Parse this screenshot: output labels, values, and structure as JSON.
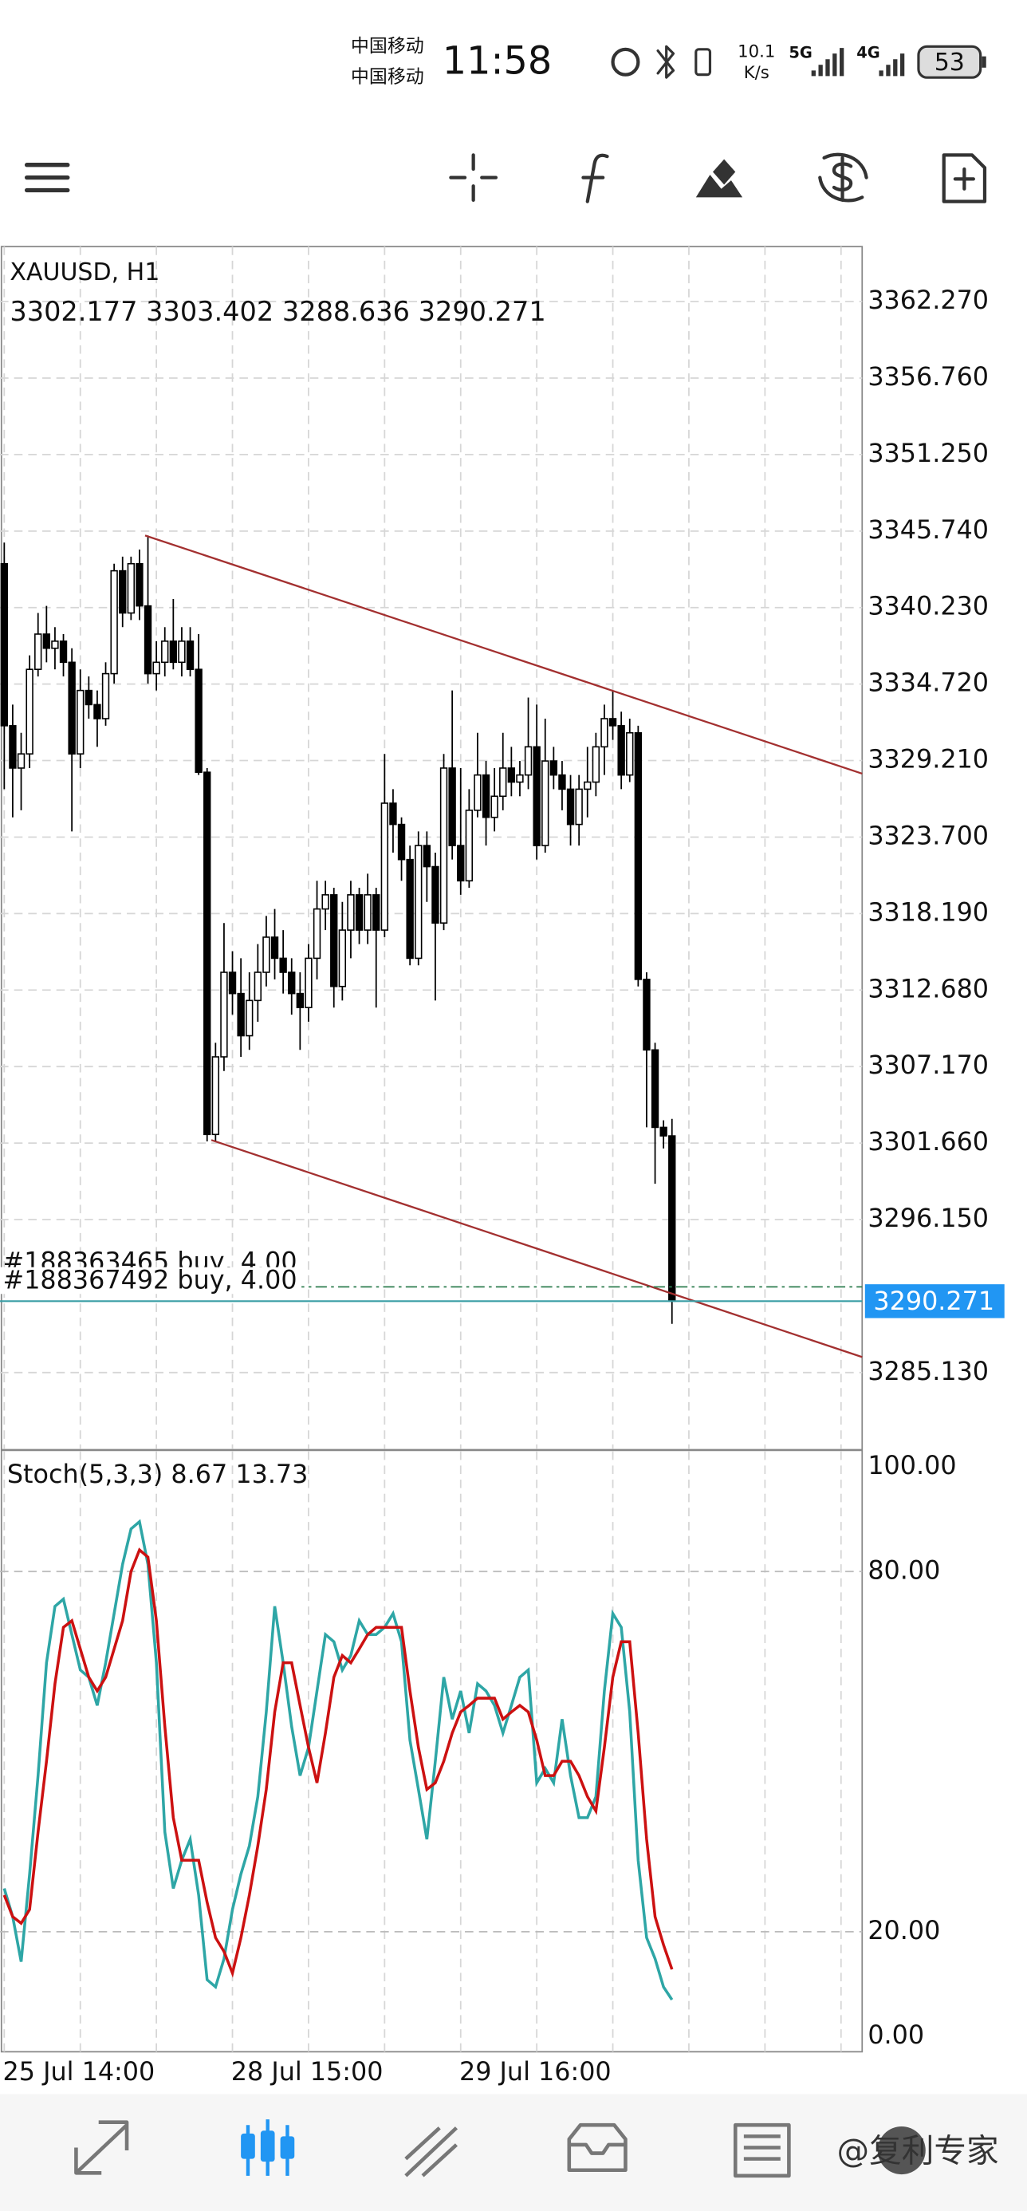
{
  "status_bar": {
    "carriers": [
      "中国移动",
      "中国移动"
    ],
    "time": "11:58",
    "speed": "10.1",
    "speed_unit": "K/s",
    "networks": [
      "5G",
      "4G"
    ],
    "battery": "53"
  },
  "chart_data": [
    {
      "type": "candlestick",
      "title": "XAUUSD, H1",
      "open": [
        3343.39,
        3331.72,
        3328.67,
        3329.69,
        3335.78,
        3338.32,
        3337.3,
        3337.81,
        3336.29,
        3329.69,
        3334.26,
        3333.24,
        3332.23,
        3335.47,
        3342.88,
        3339.84,
        3343.39,
        3340.35,
        3335.47,
        3336.29,
        3337.81,
        3336.29,
        3337.81,
        3335.78,
        3328.37,
        3302.28,
        3307.87,
        3313.96,
        3312.43,
        3309.39,
        3311.93,
        3313.96,
        3316.49,
        3314.97,
        3313.96,
        3312.43,
        3311.42,
        3314.97,
        3318.52,
        3319.54,
        3312.94,
        3317.0,
        3319.54,
        3317.0,
        3319.54,
        3317.0,
        3326.14,
        3324.61,
        3322.08,
        3314.97,
        3323.09,
        3321.57,
        3317.51,
        3328.67,
        3323.09,
        3320.55,
        3325.63,
        3328.17,
        3325.12,
        3326.64,
        3328.67,
        3327.66,
        3328.17,
        3330.2,
        3323.09,
        3329.18,
        3328.17,
        3327.15,
        3324.61,
        3327.15,
        3327.66,
        3330.2,
        3332.23,
        3331.72,
        3328.17,
        3331.21,
        3313.45,
        3308.37,
        3302.79,
        3302.177
      ],
      "high": [
        3344.91,
        3333.24,
        3331.21,
        3336.79,
        3339.84,
        3340.35,
        3338.82,
        3338.32,
        3337.3,
        3335.78,
        3335.27,
        3334.26,
        3336.29,
        3343.39,
        3343.9,
        3343.9,
        3344.41,
        3345.42,
        3337.81,
        3338.82,
        3340.85,
        3338.82,
        3338.82,
        3338.32,
        3328.67,
        3308.88,
        3317.51,
        3315.48,
        3314.97,
        3313.96,
        3315.99,
        3318.02,
        3318.52,
        3317.0,
        3314.97,
        3313.96,
        3315.99,
        3320.55,
        3320.55,
        3320.05,
        3319.03,
        3320.55,
        3320.05,
        3321.06,
        3320.05,
        3329.69,
        3327.15,
        3325.12,
        3323.09,
        3324.11,
        3324.11,
        3322.58,
        3329.69,
        3334.26,
        3328.67,
        3327.15,
        3331.21,
        3329.18,
        3328.67,
        3331.21,
        3330.2,
        3329.18,
        3333.75,
        3333.24,
        3332.23,
        3330.2,
        3329.18,
        3328.17,
        3328.17,
        3330.2,
        3331.21,
        3333.24,
        3334.26,
        3332.73,
        3332.23,
        3331.72,
        3313.96,
        3308.88,
        3303.3,
        3303.402
      ],
      "low": [
        3327.15,
        3325.12,
        3325.63,
        3328.67,
        3335.27,
        3336.29,
        3335.78,
        3335.27,
        3324.11,
        3328.67,
        3332.23,
        3330.2,
        3331.72,
        3334.76,
        3338.82,
        3339.33,
        3339.33,
        3334.76,
        3334.26,
        3335.27,
        3335.78,
        3335.27,
        3335.27,
        3328.17,
        3301.78,
        3301.78,
        3306.85,
        3310.91,
        3307.87,
        3308.37,
        3310.4,
        3312.94,
        3313.45,
        3312.43,
        3310.91,
        3308.37,
        3310.4,
        3313.45,
        3317.0,
        3311.42,
        3311.93,
        3314.97,
        3315.99,
        3315.99,
        3311.42,
        3316.49,
        3322.58,
        3320.55,
        3314.46,
        3314.46,
        3319.03,
        3311.93,
        3317.0,
        3322.08,
        3319.54,
        3320.05,
        3325.12,
        3323.09,
        3324.11,
        3325.63,
        3326.64,
        3326.64,
        3327.15,
        3322.08,
        3322.58,
        3327.15,
        3325.63,
        3323.09,
        3323.09,
        3325.12,
        3326.64,
        3328.17,
        3330.7,
        3327.15,
        3327.66,
        3312.94,
        3302.79,
        3298.73,
        3301.27,
        3288.636
      ],
      "close": [
        3331.72,
        3328.67,
        3329.69,
        3335.78,
        3338.32,
        3337.3,
        3337.81,
        3336.29,
        3329.69,
        3334.26,
        3333.24,
        3332.23,
        3335.47,
        3342.88,
        3339.84,
        3343.39,
        3340.35,
        3335.47,
        3336.29,
        3337.81,
        3336.29,
        3337.81,
        3335.78,
        3328.37,
        3302.28,
        3307.87,
        3313.96,
        3312.43,
        3309.39,
        3311.93,
        3313.96,
        3316.49,
        3314.97,
        3313.96,
        3312.43,
        3311.42,
        3314.97,
        3318.52,
        3319.54,
        3312.94,
        3317.0,
        3319.54,
        3317.0,
        3319.54,
        3317.0,
        3326.14,
        3324.61,
        3322.08,
        3314.97,
        3323.09,
        3321.57,
        3317.51,
        3328.67,
        3323.09,
        3320.55,
        3325.63,
        3328.17,
        3325.12,
        3326.64,
        3328.67,
        3327.66,
        3328.17,
        3330.2,
        3323.09,
        3329.18,
        3328.17,
        3327.15,
        3324.61,
        3327.15,
        3327.66,
        3330.2,
        3332.23,
        3331.72,
        3328.17,
        3331.21,
        3313.45,
        3308.37,
        3302.79,
        3302.177,
        3290.271
      ],
      "up_color": "#ffffff",
      "down_color": "#000000",
      "price_line_color": "#3a9ea5",
      "price_label_color": "#2196f3",
      "orders": [
        {
          "label": "#188363465 buy, 4.00",
          "price": 3291.3
        },
        {
          "label": "#188367492 buy, 4.00",
          "price": 3291.3
        }
      ],
      "order_color": "#2e7d4f",
      "xlim": [
        -0.5,
        101.5
      ],
      "ylim": [
        3279.65,
        3366.23
      ],
      "yticks": [
        {
          "value": 3362.27,
          "label": "3362.270"
        },
        {
          "value": 3356.76,
          "label": "3356.760"
        },
        {
          "value": 3351.25,
          "label": "3351.250"
        },
        {
          "value": 3345.74,
          "label": "3345.740"
        },
        {
          "value": 3340.23,
          "label": "3340.230"
        },
        {
          "value": 3334.72,
          "label": "3334.720"
        },
        {
          "value": 3329.21,
          "label": "3329.210"
        },
        {
          "value": 3323.7,
          "label": "3323.700"
        },
        {
          "value": 3318.19,
          "label": "3318.190"
        },
        {
          "value": 3312.68,
          "label": "3312.680"
        },
        {
          "value": 3307.17,
          "label": "3307.170"
        },
        {
          "value": 3301.66,
          "label": "3301.660"
        },
        {
          "value": 3296.15,
          "label": "3296.150"
        },
        {
          "value": 3285.13,
          "label": "3285.130"
        }
      ],
      "grid": true
    },
    {
      "type": "line",
      "title": "Stoch(5,3,3)",
      "series": [
        {
          "color": "#2ea6a6",
          "values": [
            27.2,
            22.5,
            15.0,
            29.6,
            46.0,
            64.8,
            74.2,
            75.4,
            69.5,
            63.6,
            62.4,
            57.7,
            64.8,
            73.0,
            81.2,
            87.1,
            88.3,
            81.2,
            64.8,
            36.6,
            27.2,
            31.9,
            35.4,
            26.1,
            12.0,
            10.8,
            15.5,
            23.7,
            29.6,
            34.3,
            42.5,
            56.6,
            74.2,
            64.8,
            54.2,
            46.0,
            50.7,
            60.1,
            69.5,
            68.3,
            63.6,
            66.0,
            71.8,
            69.5,
            69.5,
            70.7,
            73.0,
            68.3,
            51.9,
            43.7,
            35.4,
            48.4,
            62.4,
            55.4,
            60.1,
            53.1,
            61.3,
            60.1,
            57.7,
            53.1,
            57.7,
            62.4,
            63.6,
            44.8,
            47.2,
            44.8,
            55.4,
            46.0,
            39.0,
            39.0,
            42.5,
            60.1,
            73.0,
            70.7,
            56.6,
            31.9,
            19.0,
            15.5,
            10.8,
            8.67
          ]
        },
        {
          "color": "#cc1111",
          "values": [
            26.1,
            22.5,
            21.4,
            23.7,
            36.6,
            48.4,
            61.3,
            70.7,
            71.8,
            67.1,
            62.4,
            60.1,
            62.4,
            67.1,
            71.8,
            80.0,
            83.6,
            82.4,
            71.8,
            54.2,
            39.0,
            31.9,
            31.9,
            31.9,
            24.9,
            19.0,
            16.7,
            13.1,
            19.0,
            26.1,
            34.3,
            43.7,
            56.6,
            64.8,
            64.8,
            57.7,
            50.7,
            44.8,
            53.1,
            62.4,
            66.0,
            64.8,
            67.1,
            69.5,
            70.7,
            70.7,
            70.7,
            70.7,
            60.1,
            50.7,
            43.7,
            44.8,
            48.4,
            53.1,
            56.6,
            57.7,
            58.9,
            58.9,
            58.9,
            55.4,
            56.6,
            57.7,
            56.6,
            51.9,
            46.0,
            46.0,
            48.4,
            48.4,
            46.0,
            42.5,
            40.1,
            50.7,
            62.4,
            68.3,
            68.3,
            53.1,
            35.4,
            22.5,
            17.8,
            13.73
          ]
        }
      ],
      "xlim": [
        -0.5,
        101.5
      ],
      "ylim": [
        0,
        100
      ],
      "yticks": [
        {
          "value": 100,
          "label": "100.00"
        },
        {
          "value": 80,
          "label": "80.00"
        },
        {
          "value": 20,
          "label": "20.00"
        },
        {
          "value": 0,
          "label": "0.00"
        }
      ],
      "xticks": [
        {
          "value": 0,
          "label": "25 Jul 14:00"
        },
        {
          "value": 27,
          "label": "28 Jul 15:00"
        },
        {
          "value": 54,
          "label": "29 Jul 16:00"
        }
      ],
      "grid": true
    }
  ],
  "watermark": "@复利专家"
}
